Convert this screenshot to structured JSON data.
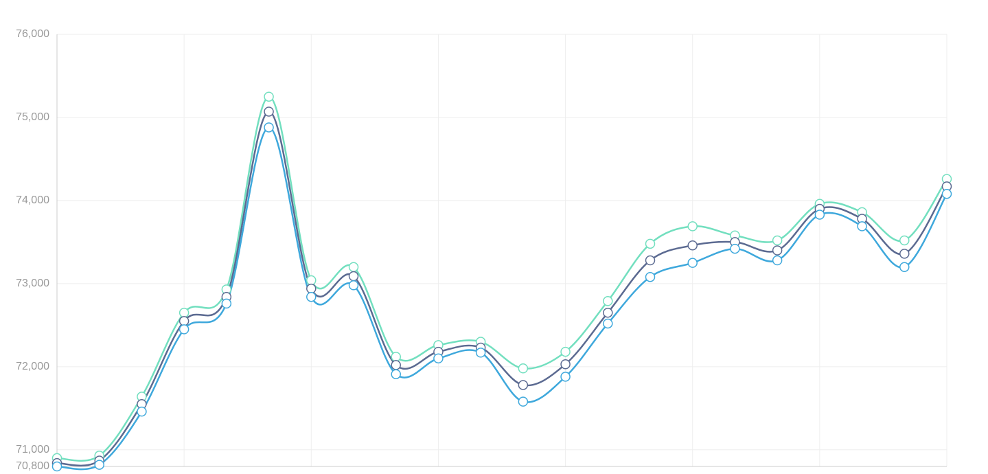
{
  "chart_data": {
    "type": "line",
    "categories": [
      null,
      null,
      null,
      null,
      null,
      null,
      null,
      null,
      null,
      null,
      null,
      null,
      null,
      null,
      null,
      null,
      null,
      null,
      null,
      null,
      null,
      null
    ],
    "series": [
      {
        "color": "#72dfbf",
        "values": [
          70900,
          70930,
          71640,
          72650,
          72930,
          75250,
          73040,
          73200,
          72120,
          72260,
          72300,
          71980,
          72180,
          72790,
          73480,
          73690,
          73580,
          73520,
          73960,
          73860,
          73520,
          74260
        ]
      },
      {
        "color": "#5b6a91",
        "values": [
          70840,
          70870,
          71550,
          72550,
          72840,
          75070,
          72940,
          73090,
          72020,
          72180,
          72230,
          71780,
          72030,
          72650,
          73280,
          73460,
          73500,
          73400,
          73900,
          73780,
          73360,
          74170
        ]
      },
      {
        "color": "#3ea8dc",
        "values": [
          70800,
          70820,
          71460,
          72450,
          72760,
          74880,
          72840,
          72980,
          71910,
          72100,
          72170,
          71580,
          71880,
          72520,
          73080,
          73250,
          73420,
          73280,
          73830,
          73690,
          73200,
          74080
        ]
      }
    ],
    "ylim": [
      70800,
      76000
    ],
    "yticks": [
      {
        "value": 70800,
        "label": "70,800"
      },
      {
        "value": 71000,
        "label": "71,000"
      },
      {
        "value": 72000,
        "label": "72,000"
      },
      {
        "value": 73000,
        "label": "73,000"
      },
      {
        "value": 74000,
        "label": "74,000"
      },
      {
        "value": 75000,
        "label": "75,000"
      },
      {
        "value": 76000,
        "label": "76,000"
      }
    ],
    "grid": true
  }
}
